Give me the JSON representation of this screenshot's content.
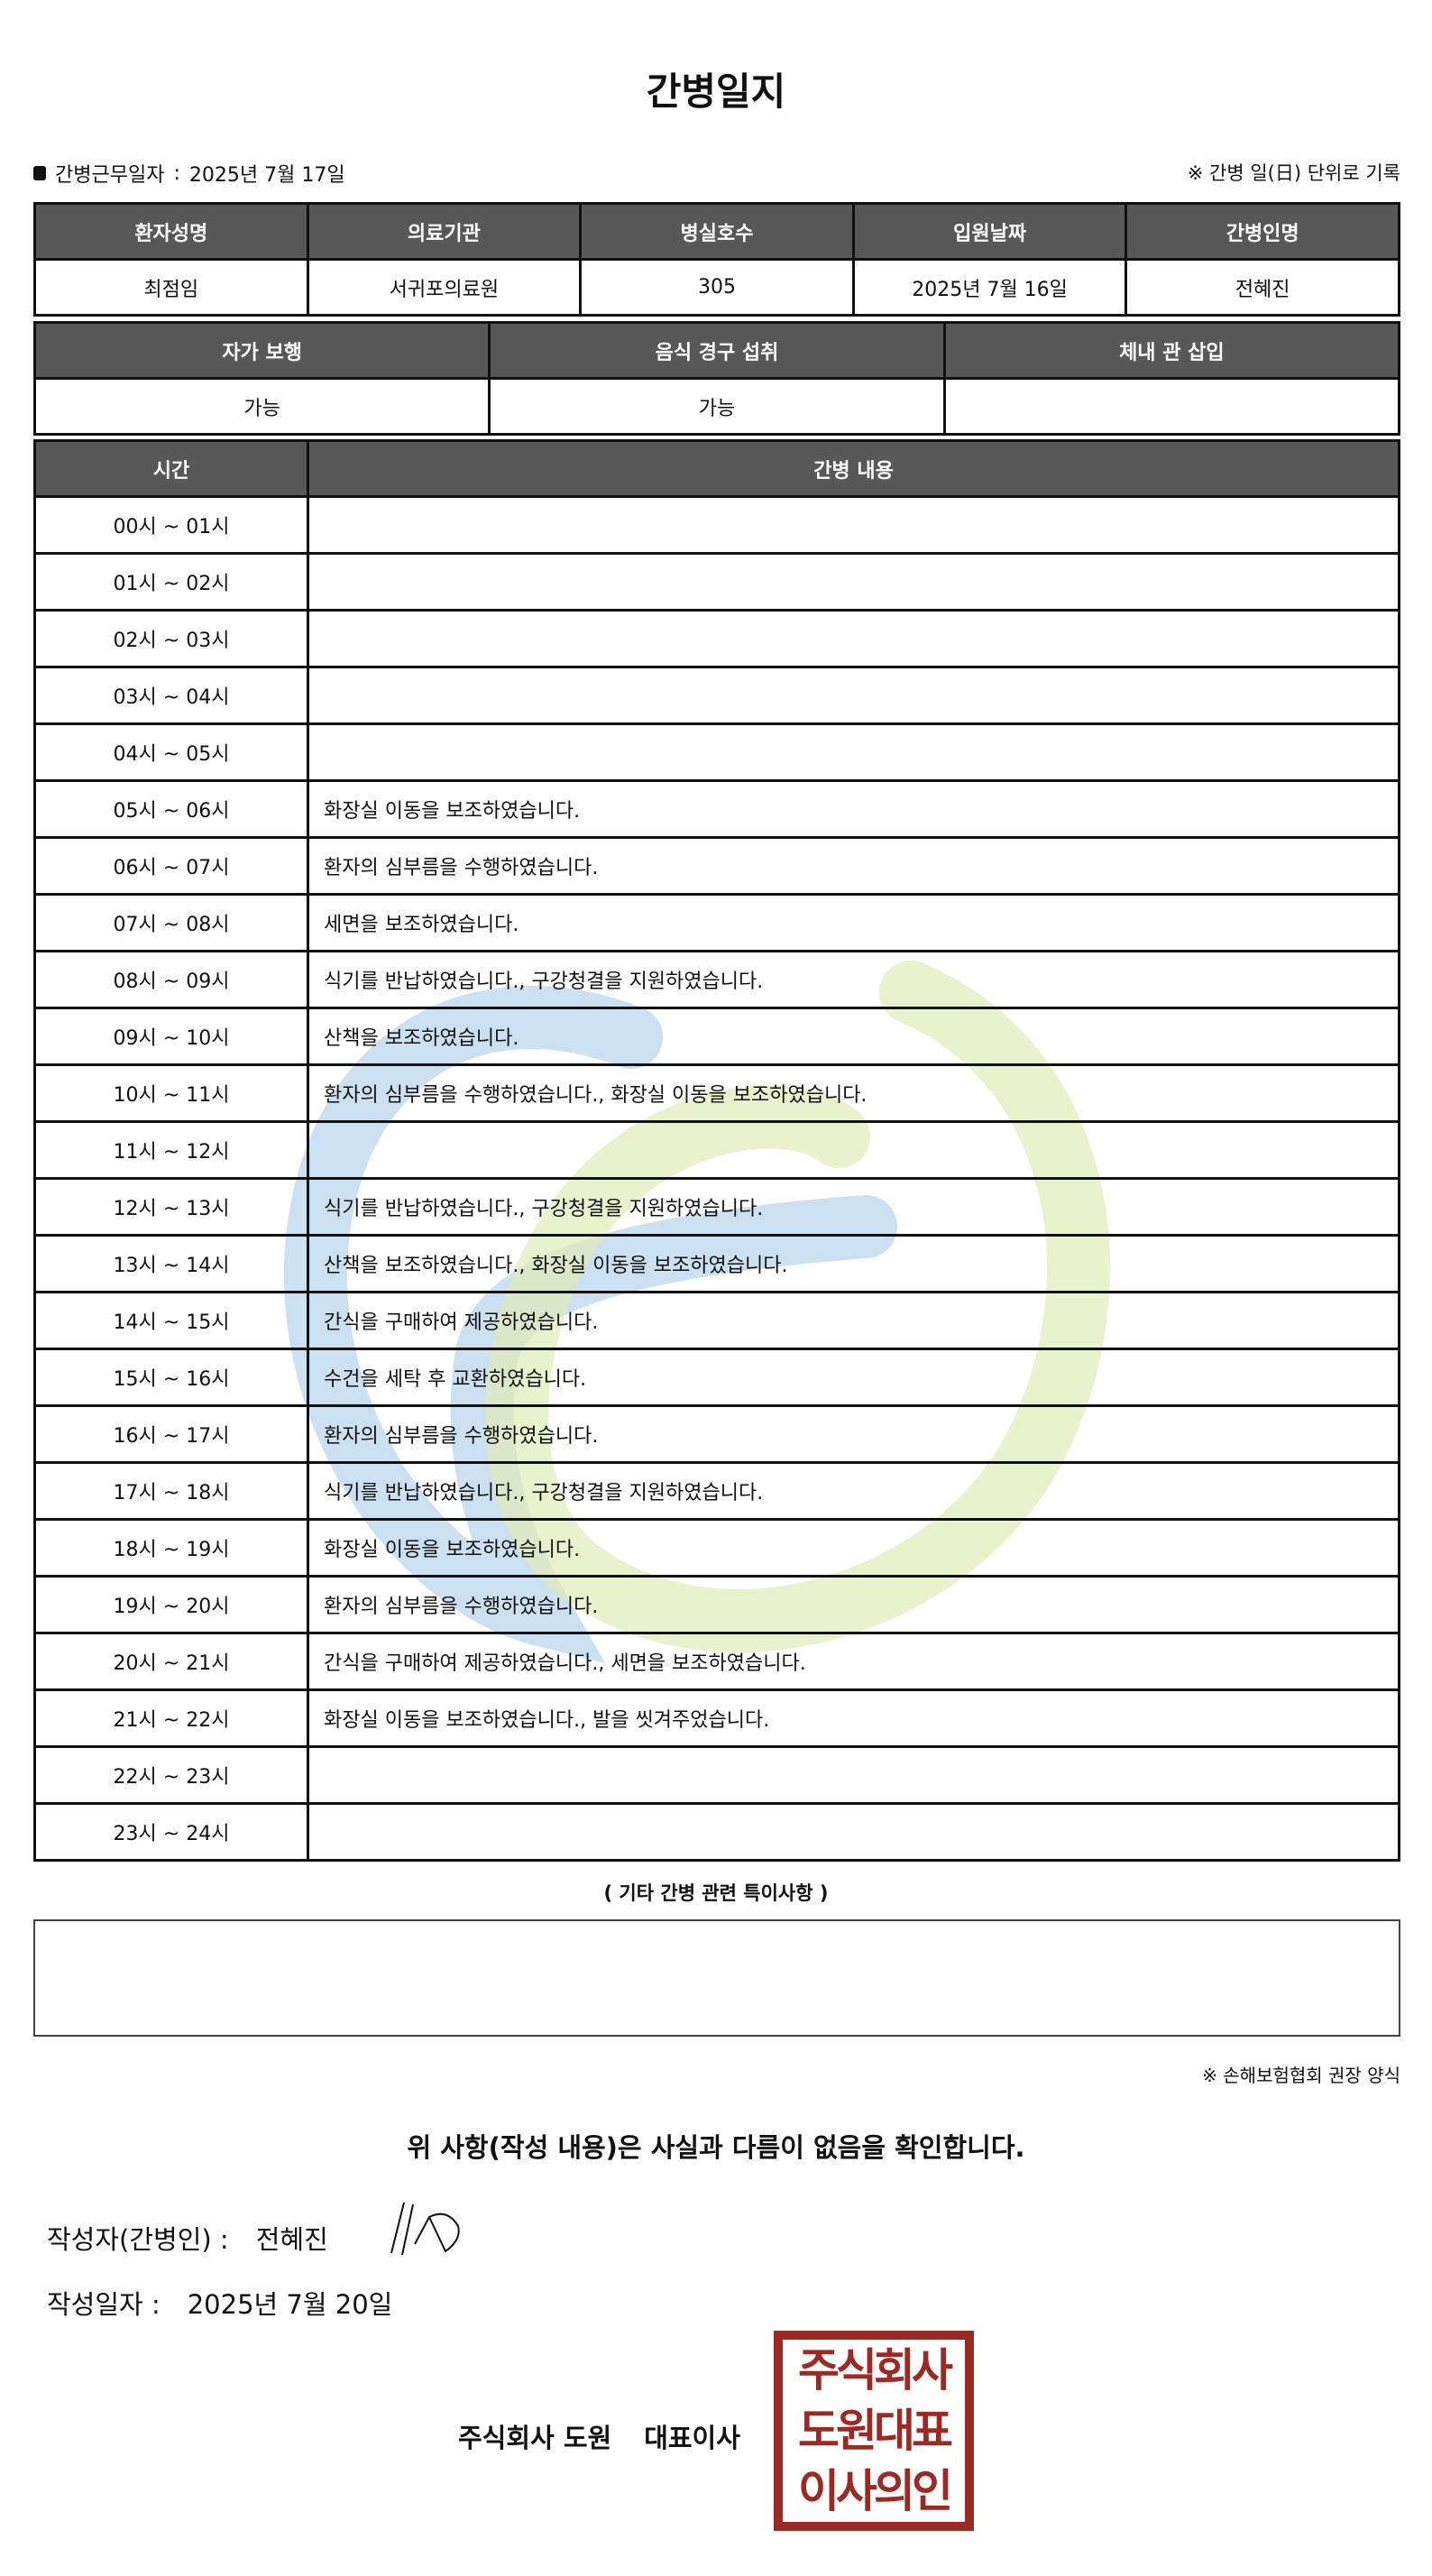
{
  "title": "간병일지",
  "work_date_label": "간병근무일자",
  "work_date": "2025년 7월 17일",
  "unit_note": "※ 간병 일(日) 단위로 기록",
  "info": {
    "headers": [
      "환자성명",
      "의료기관",
      "병실호수",
      "입원날짜",
      "간병인명"
    ],
    "values": [
      "최점임",
      "서귀포의료원",
      "305",
      "2025년 7월 16일",
      "전혜진"
    ]
  },
  "status": {
    "headers": [
      "자가 보행",
      "음식 경구 섭취",
      "체내 관 삽입"
    ],
    "values": [
      "가능",
      "가능",
      ""
    ]
  },
  "log": {
    "headers": [
      "시간",
      "간병 내용"
    ],
    "rows": [
      {
        "time": "00시 ~ 01시",
        "content": ""
      },
      {
        "time": "01시 ~ 02시",
        "content": ""
      },
      {
        "time": "02시 ~ 03시",
        "content": ""
      },
      {
        "time": "03시 ~ 04시",
        "content": ""
      },
      {
        "time": "04시 ~ 05시",
        "content": ""
      },
      {
        "time": "05시 ~ 06시",
        "content": "화장실 이동을 보조하였습니다."
      },
      {
        "time": "06시 ~ 07시",
        "content": "환자의 심부름을 수행하였습니다."
      },
      {
        "time": "07시 ~ 08시",
        "content": "세면을 보조하였습니다."
      },
      {
        "time": "08시 ~ 09시",
        "content": "식기를 반납하였습니다., 구강청결을 지원하였습니다."
      },
      {
        "time": "09시 ~ 10시",
        "content": "산책을 보조하였습니다."
      },
      {
        "time": "10시 ~ 11시",
        "content": "환자의 심부름을 수행하였습니다., 화장실 이동을 보조하였습니다."
      },
      {
        "time": "11시 ~ 12시",
        "content": ""
      },
      {
        "time": "12시 ~ 13시",
        "content": "식기를 반납하였습니다., 구강청결을 지원하였습니다."
      },
      {
        "time": "13시 ~ 14시",
        "content": "산책을 보조하였습니다., 화장실 이동을 보조하였습니다."
      },
      {
        "time": "14시 ~ 15시",
        "content": "간식을 구매하여 제공하였습니다."
      },
      {
        "time": "15시 ~ 16시",
        "content": "수건을 세탁 후 교환하였습니다."
      },
      {
        "time": "16시 ~ 17시",
        "content": "환자의 심부름을 수행하였습니다."
      },
      {
        "time": "17시 ~ 18시",
        "content": "식기를 반납하였습니다., 구강청결을 지원하였습니다."
      },
      {
        "time": "18시 ~ 19시",
        "content": "화장실 이동을 보조하였습니다."
      },
      {
        "time": "19시 ~ 20시",
        "content": "환자의 심부름을 수행하였습니다."
      },
      {
        "time": "20시 ~ 21시",
        "content": "간식을 구매하여 제공하였습니다., 세면을 보조하였습니다."
      },
      {
        "time": "21시 ~ 22시",
        "content": "화장실 이동을 보조하였습니다., 발을 씻겨주었습니다."
      },
      {
        "time": "22시 ~ 23시",
        "content": ""
      },
      {
        "time": "23시 ~ 24시",
        "content": ""
      }
    ]
  },
  "notes_caption": "( 기타 간병 관련 특이사항 )",
  "notes": "",
  "insurance_note": "※ 손해보험협회 권장 양식",
  "confirm": "위 사항(작성 내용)은 사실과 다름이 없음을 확인합니다.",
  "writer_label": "작성자(간병인) :",
  "writer_name": "전혜진",
  "date_label": "작성일자 :",
  "date_value": "2025년 7월 20일",
  "company": "주식회사 도원",
  "ceo": "대표이사",
  "stamp_lines": [
    "주식회사",
    "도원대표",
    "이사의인"
  ],
  "colors": {
    "header_bg": "#585858",
    "stamp": "#9b2a25",
    "watermark_blue": "#a9cce8",
    "watermark_green": "#e0ebb8"
  }
}
